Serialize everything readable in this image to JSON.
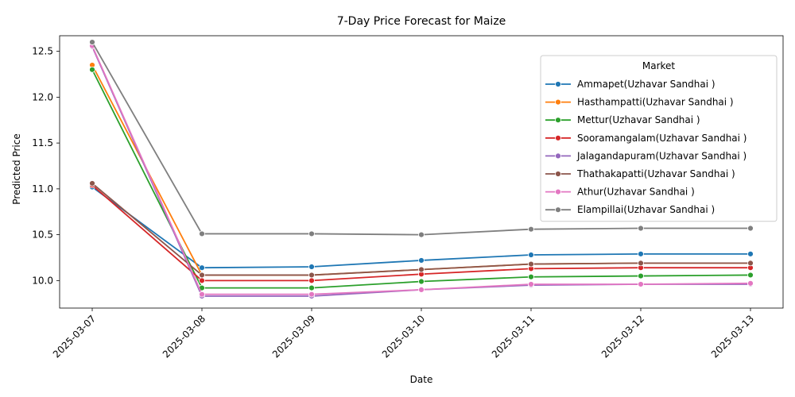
{
  "chart_data": {
    "type": "line",
    "title": "7-Day Price Forecast for Maize",
    "xlabel": "Date",
    "ylabel": "Predicted Price",
    "x": [
      "2025-03-07",
      "2025-03-08",
      "2025-03-09",
      "2025-03-10",
      "2025-03-11",
      "2025-03-12",
      "2025-03-13"
    ],
    "ylim": [
      9.7,
      12.67
    ],
    "yticks": [
      "10.0",
      "10.5",
      "11.0",
      "11.5",
      "12.0",
      "12.5"
    ],
    "grid": false,
    "legend": {
      "title": "Market",
      "placement": "top-right"
    },
    "series": [
      {
        "name": "Ammapet(Uzhavar Sandhai )",
        "color": "#1f77b4",
        "values": [
          11.02,
          10.14,
          10.15,
          10.22,
          10.28,
          10.29,
          10.29
        ]
      },
      {
        "name": "Hasthampatti(Uzhavar Sandhai )",
        "color": "#ff7f0e",
        "values": [
          12.35,
          10.06,
          10.06,
          10.12,
          10.18,
          10.19,
          10.19
        ]
      },
      {
        "name": "Mettur(Uzhavar Sandhai )",
        "color": "#2ca02c",
        "values": [
          12.3,
          9.92,
          9.92,
          9.99,
          10.04,
          10.05,
          10.06
        ]
      },
      {
        "name": "Sooramangalam(Uzhavar Sandhai )",
        "color": "#d62728",
        "values": [
          11.04,
          10.0,
          10.0,
          10.07,
          10.13,
          10.14,
          10.14
        ]
      },
      {
        "name": "Jalagandapuram(Uzhavar Sandhai )",
        "color": "#9467bd",
        "values": [
          12.55,
          9.83,
          9.83,
          9.9,
          9.95,
          9.96,
          9.96
        ]
      },
      {
        "name": "Thathakapatti(Uzhavar Sandhai )",
        "color": "#8c564b",
        "values": [
          11.06,
          10.06,
          10.06,
          10.12,
          10.18,
          10.19,
          10.19
        ]
      },
      {
        "name": "Athur(Uzhavar Sandhai )",
        "color": "#e377c2",
        "values": [
          12.56,
          9.85,
          9.85,
          9.9,
          9.96,
          9.96,
          9.97
        ]
      },
      {
        "name": "Elampillai(Uzhavar Sandhai )",
        "color": "#7f7f7f",
        "values": [
          12.6,
          10.51,
          10.51,
          10.5,
          10.56,
          10.57,
          10.57
        ]
      }
    ]
  }
}
